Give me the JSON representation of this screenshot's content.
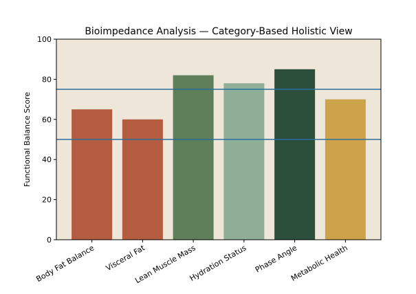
{
  "chart_data": {
    "type": "bar",
    "title": "Bioimpedance Analysis — Category-Based Holistic View",
    "xlabel": "",
    "ylabel": "Functional Balance Score",
    "ylim": [
      0,
      100
    ],
    "yticks": [
      0,
      20,
      40,
      60,
      80,
      100
    ],
    "categories": [
      "Body Fat Balance",
      "Visceral Fat",
      "Lean Muscle Mass",
      "Hydration Status",
      "Phase Angle",
      "Metabolic Health"
    ],
    "values": [
      65,
      60,
      82,
      78,
      85,
      70
    ],
    "bar_colors": [
      "#b35c40",
      "#b35c40",
      "#5e7f5a",
      "#8fae98",
      "#2c4f3c",
      "#cca24b"
    ],
    "reference_lines": [
      75,
      50
    ],
    "reference_line_color": "#2a6f9e",
    "plot_background": "#efe6da",
    "grid": false,
    "legend": "none"
  }
}
